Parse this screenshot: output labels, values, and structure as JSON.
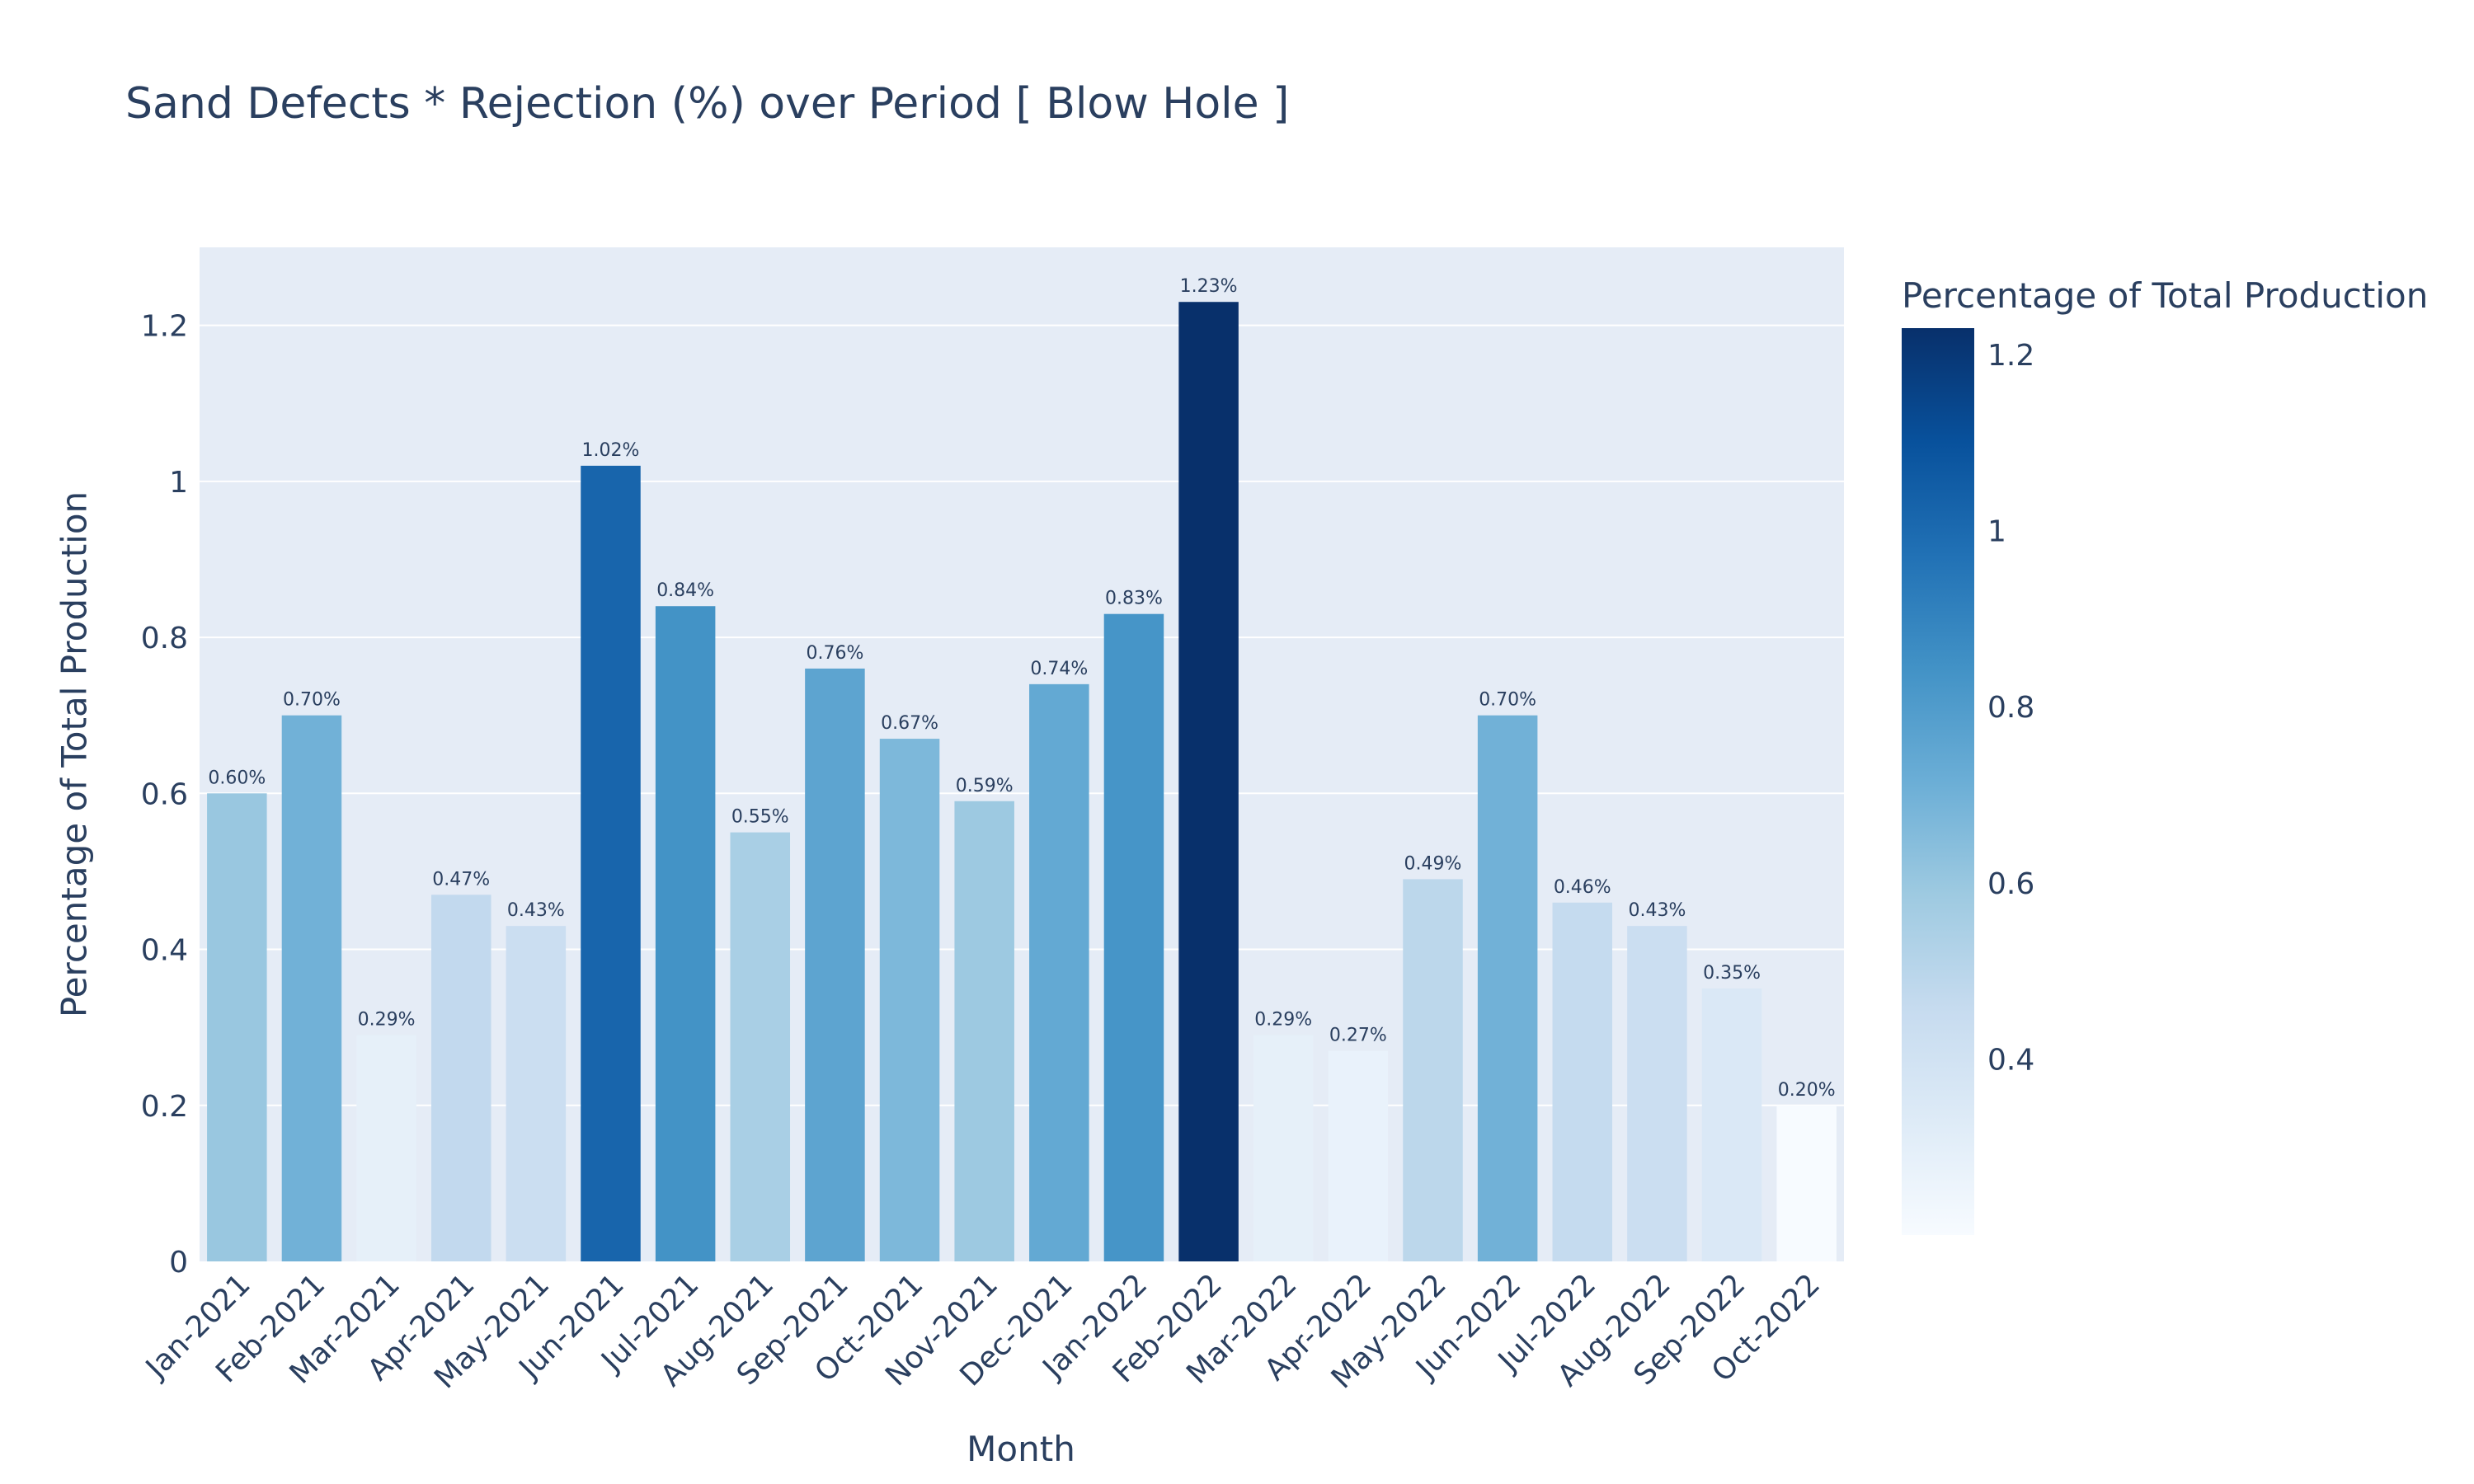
{
  "chart_data": {
    "type": "bar",
    "title": "Sand Defects * Rejection (%) over Period [ Blow Hole ]",
    "xlabel": "Month",
    "ylabel": "Percentage of Total Production",
    "categories": [
      "Jan-2021",
      "Feb-2021",
      "Mar-2021",
      "Apr-2021",
      "May-2021",
      "Jun-2021",
      "Jul-2021",
      "Aug-2021",
      "Sep-2021",
      "Oct-2021",
      "Nov-2021",
      "Dec-2021",
      "Jan-2022",
      "Feb-2022",
      "Mar-2022",
      "Apr-2022",
      "May-2022",
      "Jun-2022",
      "Jul-2022",
      "Aug-2022",
      "Sep-2022",
      "Oct-2022"
    ],
    "values": [
      0.6,
      0.7,
      0.29,
      0.47,
      0.43,
      1.02,
      0.84,
      0.55,
      0.76,
      0.67,
      0.59,
      0.74,
      0.83,
      1.23,
      0.29,
      0.27,
      0.49,
      0.7,
      0.46,
      0.43,
      0.35,
      0.2
    ],
    "data_labels": [
      "0.60%",
      "0.70%",
      "0.29%",
      "0.47%",
      "0.43%",
      "1.02%",
      "0.84%",
      "0.55%",
      "0.76%",
      "0.67%",
      "0.59%",
      "0.74%",
      "0.83%",
      "1.23%",
      "0.29%",
      "0.27%",
      "0.49%",
      "0.70%",
      "0.46%",
      "0.43%",
      "0.35%",
      "0.20%"
    ],
    "ylim": [
      0,
      1.3
    ],
    "yticks": [
      0,
      0.2,
      0.4,
      0.6,
      0.8,
      1,
      1.2
    ],
    "ytick_labels": [
      "0",
      "0.2",
      "0.4",
      "0.6",
      "0.8",
      "1",
      "1.2"
    ],
    "grid": true,
    "colorbar": {
      "title": "Percentage of Total Production",
      "range": [
        0.2,
        1.23
      ],
      "ticks": [
        0.4,
        0.6,
        0.8,
        1,
        1.2
      ],
      "tick_labels": [
        "0.4",
        "0.6",
        "0.8",
        "1",
        "1.2"
      ],
      "colorscale": "Blues"
    },
    "colors": {
      "plot_background": "#e5ecf6",
      "gridline": "#ffffff",
      "text": "#2a3f5f"
    }
  }
}
